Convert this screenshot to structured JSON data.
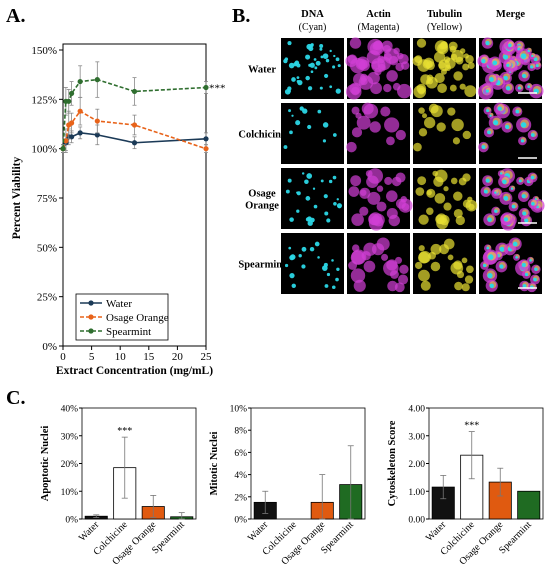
{
  "panels": {
    "A": "A.",
    "B": "B.",
    "C": "C."
  },
  "colors": {
    "water": "#1b3a57",
    "osage": "#e8631a",
    "spearmint": "#2f6e2f",
    "cyan": "#2bd7e6",
    "magenta": "#d23fd6",
    "yellow": "#e8e032",
    "black_bar": "#111111",
    "white_bar": "#ffffff",
    "orange_bar": "#e05a10",
    "green_bar": "#1f6b22"
  },
  "chart_data": [
    {
      "id": "viability",
      "type": "line",
      "title": "",
      "xlabel": "Extract Concentration (mg/mL)",
      "ylabel": "Percent Viability",
      "xlim": [
        0,
        25
      ],
      "ylim": [
        0,
        150
      ],
      "xticks": [
        "0",
        "5",
        "10",
        "15",
        "20",
        "25"
      ],
      "yticks": [
        "0%",
        "25%",
        "50%",
        "75%",
        "100%",
        "125%",
        "150%"
      ],
      "legend_position": "bottom-right",
      "annotation": "***",
      "series": [
        {
          "name": "Water",
          "style": "solid",
          "x": [
            0,
            0.5,
            1,
            1.5,
            3,
            6,
            12.5,
            25
          ],
          "y": [
            100,
            103,
            106,
            106,
            108,
            107,
            103,
            105
          ],
          "err": [
            2,
            4,
            4,
            3,
            3,
            5,
            3,
            3
          ]
        },
        {
          "name": "Osage Orange",
          "style": "dashed",
          "x": [
            0,
            0.5,
            1,
            1.5,
            3,
            6,
            12.5,
            25
          ],
          "y": [
            100,
            104,
            112,
            113,
            119,
            114,
            112,
            100
          ],
          "err": [
            2,
            6,
            7,
            5,
            7,
            6,
            5,
            2
          ]
        },
        {
          "name": "Spearmint",
          "style": "dashed",
          "x": [
            0,
            0.5,
            1,
            1.5,
            3,
            6,
            12.5,
            25
          ],
          "y": [
            100,
            124,
            124,
            128,
            134,
            135,
            129,
            131
          ],
          "err": [
            2,
            7,
            6,
            6,
            8,
            9,
            7,
            3
          ]
        }
      ]
    },
    {
      "id": "apoptotic",
      "type": "bar",
      "ylabel": "Apoptotic Nuclei",
      "ylim": [
        0,
        40
      ],
      "yticks": [
        "0%",
        "10%",
        "20%",
        "30%",
        "40%"
      ],
      "categories": [
        "Water",
        "Colchicine",
        "Osage Orange",
        "Spearmint"
      ],
      "values": [
        1.0,
        18.5,
        4.5,
        0.8
      ],
      "err": [
        0.5,
        11,
        4,
        1.5
      ],
      "annotation": "***",
      "annotation_index": 1
    },
    {
      "id": "mitotic",
      "type": "bar",
      "ylabel": "Mitotic Nuclei",
      "ylim": [
        0,
        10
      ],
      "yticks": [
        "0%",
        "2%",
        "4%",
        "6%",
        "8%",
        "10%"
      ],
      "categories": [
        "Water",
        "Colchicine",
        "Osage Orange",
        "Spearmint"
      ],
      "values": [
        1.5,
        0,
        1.5,
        3.1
      ],
      "err": [
        1.0,
        0,
        2.5,
        3.5
      ]
    },
    {
      "id": "cytoskeleton",
      "type": "bar",
      "ylabel": "Cytoskeleton Score",
      "ylim": [
        0,
        4
      ],
      "yticks": [
        "0.00",
        "1.00",
        "2.00",
        "3.00",
        "4.00"
      ],
      "categories": [
        "Water",
        "Colchicine",
        "Osage Orange",
        "Spearmint"
      ],
      "values": [
        1.15,
        2.3,
        1.33,
        1.0
      ],
      "err": [
        0.42,
        0.85,
        0.5,
        0
      ],
      "annotation": "***",
      "annotation_index": 1
    }
  ],
  "microscopy": {
    "columns": [
      {
        "name": "DNA",
        "stain": "(Cyan)"
      },
      {
        "name": "Actin",
        "stain": "(Magenta)"
      },
      {
        "name": "Tubulin",
        "stain": "(Yellow)"
      },
      {
        "name": "Merge",
        "stain": ""
      }
    ],
    "rows": [
      {
        "label": [
          "Water"
        ]
      },
      {
        "label": [
          "Colchicine"
        ]
      },
      {
        "label": [
          "Osage",
          "Orange"
        ]
      },
      {
        "label": [
          "Spearmint"
        ]
      }
    ]
  }
}
